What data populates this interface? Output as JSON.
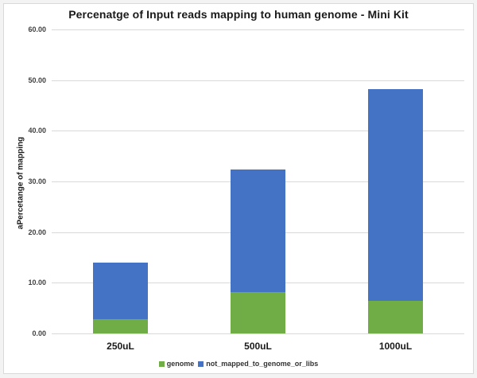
{
  "chart_data": {
    "type": "bar",
    "stacked": true,
    "title": "Percenatge of Input reads mapping to human genome - Mini Kit",
    "xlabel": "",
    "ylabel": "aPercetange of mapping",
    "ylim": [
      0,
      60
    ],
    "yticks": [
      "0.00",
      "10.00",
      "20.00",
      "30.00",
      "40.00",
      "50.00",
      "60.00"
    ],
    "grid": true,
    "legend_position": "bottom",
    "categories": [
      "250uL",
      "500uL",
      "1000uL"
    ],
    "series": [
      {
        "name": "genome",
        "color": "#70ad47",
        "values": [
          2.8,
          8.2,
          6.4
        ]
      },
      {
        "name": "not_mapped_to_genome_or_libs",
        "color": "#4472c4",
        "values": [
          11.2,
          24.1,
          41.8
        ]
      }
    ],
    "totals": [
      14.0,
      32.3,
      48.2
    ]
  }
}
